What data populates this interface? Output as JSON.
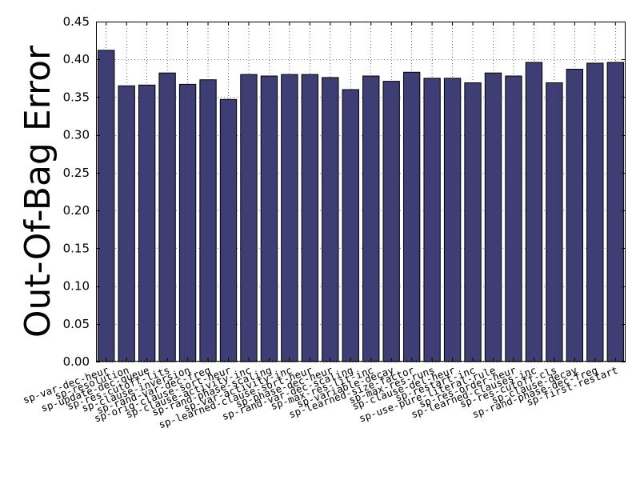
{
  "chart_data": {
    "type": "bar",
    "title": "",
    "xlabel": "",
    "ylabel": "Out-Of-Bag Error",
    "ylim": [
      0,
      0.45
    ],
    "yticks": [
      "0.00",
      "0.05",
      "0.10",
      "0.15",
      "0.20",
      "0.25",
      "0.30",
      "0.35",
      "0.40",
      "0.45"
    ],
    "grid": true,
    "bar_color": "#3e3d74",
    "categories": [
      "sp-var-dec-heur",
      "sp-resolution",
      "sp-update-dec-queue",
      "sp-res-cutoff-lits",
      "sp-clause-inversion",
      "sp-rand-var-dec-freq",
      "sp-orig-clause-sort-heur",
      "sp-clause-activity-inc",
      "sp-rand-phase-scaling",
      "sp-var-activity-inc",
      "sp-learned-clause-sort-heur",
      "sp-phase-dec-heur",
      "sp-rand-var-dec-scaling",
      "sp-max-res-lit-inc",
      "sp-variable-decay",
      "sp-learned-size-factor",
      "sp-max-res-runs",
      "sp-clause-del-heur",
      "sp-restart-inc",
      "sp-use-pure-literal-rule",
      "sp-res-order-heur",
      "sp-learned-clauses-inc",
      "sp-res-cutoff-cls",
      "sp-clause-decay",
      "sp-rand-phase-dec-freq",
      "sp-first-restart"
    ],
    "values": [
      0.412,
      0.365,
      0.366,
      0.382,
      0.367,
      0.373,
      0.347,
      0.38,
      0.378,
      0.38,
      0.38,
      0.376,
      0.36,
      0.378,
      0.371,
      0.383,
      0.375,
      0.375,
      0.369,
      0.382,
      0.378,
      0.396,
      0.369,
      0.387,
      0.395,
      0.396
    ]
  }
}
